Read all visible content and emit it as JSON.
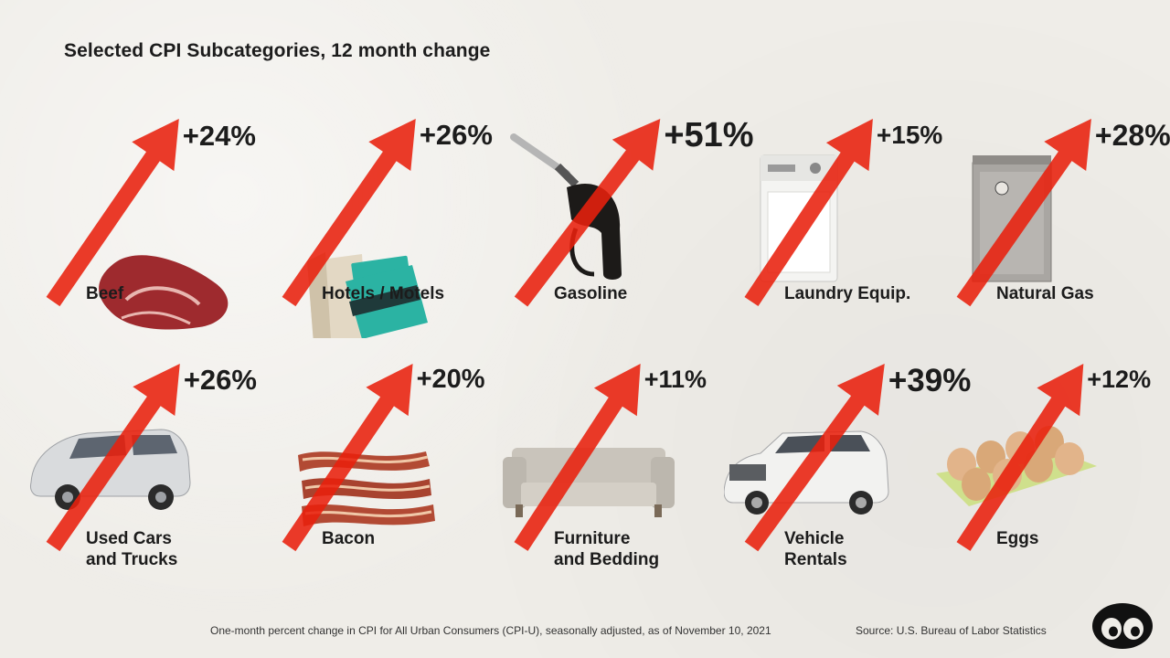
{
  "chart_data": {
    "type": "bar",
    "title": "Selected CPI Subcategories, 12 month change",
    "categories": [
      "Beef",
      "Hotels / Motels",
      "Gasoline",
      "Laundry Equip.",
      "Natural Gas",
      "Used Cars and Trucks",
      "Bacon",
      "Furniture and Bedding",
      "Vehicle Rentals",
      "Eggs"
    ],
    "values": [
      24,
      26,
      51,
      15,
      28,
      26,
      20,
      11,
      39,
      12
    ],
    "value_labels": [
      "+24%",
      "+26%",
      "+51%",
      "+15%",
      "+28%",
      "+26%",
      "+20%",
      "+11%",
      "+39%",
      "+12%"
    ],
    "label_lines": [
      [
        "Beef"
      ],
      [
        "Hotels / Motels"
      ],
      [
        "Gasoline"
      ],
      [
        "Laundry Equip."
      ],
      [
        "Natural Gas"
      ],
      [
        "Used Cars",
        "and Trucks"
      ],
      [
        "Bacon"
      ],
      [
        "Furniture",
        "and Bedding"
      ],
      [
        "Vehicle",
        "Rentals"
      ],
      [
        "Eggs"
      ]
    ],
    "icons": [
      "beef-icon",
      "hotel-keycard-icon",
      "gas-pump-nozzle-icon",
      "washing-machine-icon",
      "water-heater-icon",
      "minivan-icon",
      "bacon-icon",
      "sofa-icon",
      "suv-icon",
      "eggs-icon"
    ],
    "arrow_color": "#e8200c"
  },
  "footer": {
    "note": "One-month percent change in CPI for All Urban Consumers (CPI-U), seasonally adjusted, as of November 10, 2021",
    "source": "Source: U.S. Bureau of Labor Statistics"
  },
  "brand": {
    "logo": "visual-capitalist-logo"
  }
}
